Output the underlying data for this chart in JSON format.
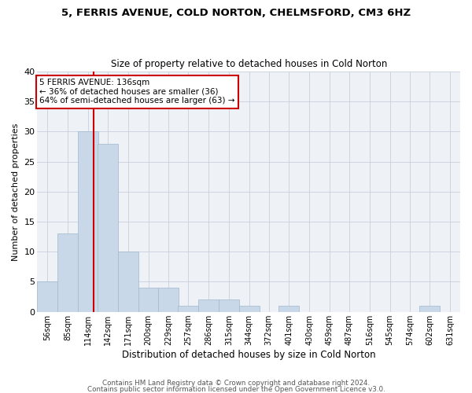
{
  "title1": "5, FERRIS AVENUE, COLD NORTON, CHELMSFORD, CM3 6HZ",
  "title2": "Size of property relative to detached houses in Cold Norton",
  "xlabel": "Distribution of detached houses by size in Cold Norton",
  "ylabel": "Number of detached properties",
  "bin_edges": [
    56,
    85,
    114,
    142,
    171,
    200,
    229,
    257,
    286,
    315,
    344,
    372,
    401,
    430,
    459,
    487,
    516,
    545,
    574,
    602,
    631
  ],
  "counts": [
    5,
    13,
    30,
    28,
    10,
    4,
    4,
    1,
    2,
    2,
    1,
    0,
    1,
    0,
    0,
    0,
    0,
    0,
    0,
    1
  ],
  "property_size": 136,
  "bar_color": "#c8d8e8",
  "bar_edge_color": "#a0b8cc",
  "vline_color": "#cc0000",
  "annotation_box_color": "#cc0000",
  "grid_color": "#c8d0dc",
  "background_color": "#eef2f7",
  "ylim": [
    0,
    40
  ],
  "yticks": [
    0,
    5,
    10,
    15,
    20,
    25,
    30,
    35,
    40
  ],
  "annotation_line1": "5 FERRIS AVENUE: 136sqm",
  "annotation_line2": "← 36% of detached houses are smaller (36)",
  "annotation_line3": "64% of semi-detached houses are larger (63) →",
  "footer1": "Contains HM Land Registry data © Crown copyright and database right 2024.",
  "footer2": "Contains public sector information licensed under the Open Government Licence v3.0."
}
